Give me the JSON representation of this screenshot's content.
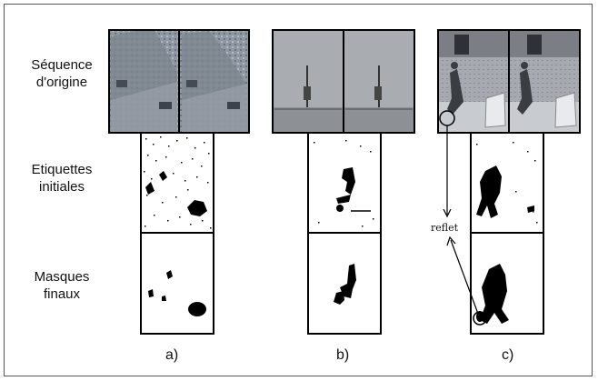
{
  "rows": {
    "original": [
      "Séquence",
      "d'origine"
    ],
    "initial": [
      "Etiquettes",
      "initiales"
    ],
    "final": [
      "Masques",
      "finaux"
    ]
  },
  "columns": [
    "a)",
    "b)",
    "c)"
  ],
  "annotation": "reflet"
}
